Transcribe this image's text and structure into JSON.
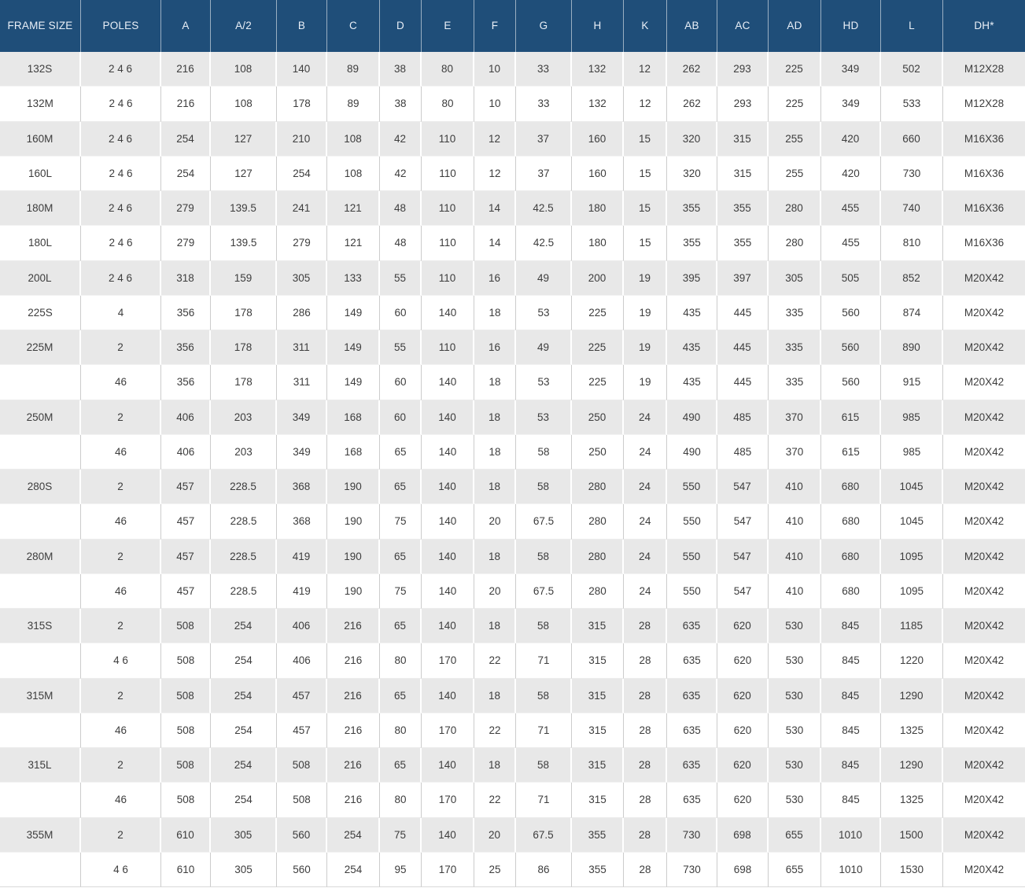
{
  "colors": {
    "header_bg": "#1F4E79",
    "header_text": "#E9EFF7",
    "row_alt_bg": "#E8E8E8",
    "row_bg": "#FFFFFF",
    "cell_text": "#3D3D3D",
    "grid_on_gray": "#FFFFFF",
    "grid_on_white": "#CCCCCC"
  },
  "chart_data": {
    "type": "table",
    "title": "",
    "columns": [
      "FRAME SIZE",
      "POLES",
      "A",
      "A/2",
      "B",
      "C",
      "D",
      "E",
      "F",
      "G",
      "H",
      "K",
      "AB",
      "AC",
      "AD",
      "HD",
      "L",
      "DH*"
    ],
    "rows": [
      [
        "132S",
        "2 4 6",
        "216",
        "108",
        "140",
        "89",
        "38",
        "80",
        "10",
        "33",
        "132",
        "12",
        "262",
        "293",
        "225",
        "349",
        "502",
        "M12X28"
      ],
      [
        "132M",
        "2 4 6",
        "216",
        "108",
        "178",
        "89",
        "38",
        "80",
        "10",
        "33",
        "132",
        "12",
        "262",
        "293",
        "225",
        "349",
        "533",
        "M12X28"
      ],
      [
        "160M",
        "2 4 6",
        "254",
        "127",
        "210",
        "108",
        "42",
        "110",
        "12",
        "37",
        "160",
        "15",
        "320",
        "315",
        "255",
        "420",
        "660",
        "M16X36"
      ],
      [
        "160L",
        "2 4 6",
        "254",
        "127",
        "254",
        "108",
        "42",
        "110",
        "12",
        "37",
        "160",
        "15",
        "320",
        "315",
        "255",
        "420",
        "730",
        "M16X36"
      ],
      [
        "180M",
        "2 4 6",
        "279",
        "139.5",
        "241",
        "121",
        "48",
        "110",
        "14",
        "42.5",
        "180",
        "15",
        "355",
        "355",
        "280",
        "455",
        "740",
        "M16X36"
      ],
      [
        "180L",
        "2 4 6",
        "279",
        "139.5",
        "279",
        "121",
        "48",
        "110",
        "14",
        "42.5",
        "180",
        "15",
        "355",
        "355",
        "280",
        "455",
        "810",
        "M16X36"
      ],
      [
        "200L",
        "2 4 6",
        "318",
        "159",
        "305",
        "133",
        "55",
        "110",
        "16",
        "49",
        "200",
        "19",
        "395",
        "397",
        "305",
        "505",
        "852",
        "M20X42"
      ],
      [
        "225S",
        "4",
        "356",
        "178",
        "286",
        "149",
        "60",
        "140",
        "18",
        "53",
        "225",
        "19",
        "435",
        "445",
        "335",
        "560",
        "874",
        "M20X42"
      ],
      [
        "225M",
        "2",
        "356",
        "178",
        "311",
        "149",
        "55",
        "110",
        "16",
        "49",
        "225",
        "19",
        "435",
        "445",
        "335",
        "560",
        "890",
        "M20X42"
      ],
      [
        "",
        "46",
        "356",
        "178",
        "311",
        "149",
        "60",
        "140",
        "18",
        "53",
        "225",
        "19",
        "435",
        "445",
        "335",
        "560",
        "915",
        "M20X42"
      ],
      [
        "250M",
        "2",
        "406",
        "203",
        "349",
        "168",
        "60",
        "140",
        "18",
        "53",
        "250",
        "24",
        "490",
        "485",
        "370",
        "615",
        "985",
        "M20X42"
      ],
      [
        "",
        "46",
        "406",
        "203",
        "349",
        "168",
        "65",
        "140",
        "18",
        "58",
        "250",
        "24",
        "490",
        "485",
        "370",
        "615",
        "985",
        "M20X42"
      ],
      [
        "280S",
        "2",
        "457",
        "228.5",
        "368",
        "190",
        "65",
        "140",
        "18",
        "58",
        "280",
        "24",
        "550",
        "547",
        "410",
        "680",
        "1045",
        "M20X42"
      ],
      [
        "",
        "46",
        "457",
        "228.5",
        "368",
        "190",
        "75",
        "140",
        "20",
        "67.5",
        "280",
        "24",
        "550",
        "547",
        "410",
        "680",
        "1045",
        "M20X42"
      ],
      [
        "280M",
        "2",
        "457",
        "228.5",
        "419",
        "190",
        "65",
        "140",
        "18",
        "58",
        "280",
        "24",
        "550",
        "547",
        "410",
        "680",
        "1095",
        "M20X42"
      ],
      [
        "",
        "46",
        "457",
        "228.5",
        "419",
        "190",
        "75",
        "140",
        "20",
        "67.5",
        "280",
        "24",
        "550",
        "547",
        "410",
        "680",
        "1095",
        "M20X42"
      ],
      [
        "315S",
        "2",
        "508",
        "254",
        "406",
        "216",
        "65",
        "140",
        "18",
        "58",
        "315",
        "28",
        "635",
        "620",
        "530",
        "845",
        "1185",
        "M20X42"
      ],
      [
        "",
        "4 6",
        "508",
        "254",
        "406",
        "216",
        "80",
        "170",
        "22",
        "71",
        "315",
        "28",
        "635",
        "620",
        "530",
        "845",
        "1220",
        "M20X42"
      ],
      [
        "315M",
        "2",
        "508",
        "254",
        "457",
        "216",
        "65",
        "140",
        "18",
        "58",
        "315",
        "28",
        "635",
        "620",
        "530",
        "845",
        "1290",
        "M20X42"
      ],
      [
        "",
        "46",
        "508",
        "254",
        "457",
        "216",
        "80",
        "170",
        "22",
        "71",
        "315",
        "28",
        "635",
        "620",
        "530",
        "845",
        "1325",
        "M20X42"
      ],
      [
        "315L",
        "2",
        "508",
        "254",
        "508",
        "216",
        "65",
        "140",
        "18",
        "58",
        "315",
        "28",
        "635",
        "620",
        "530",
        "845",
        "1290",
        "M20X42"
      ],
      [
        "",
        "46",
        "508",
        "254",
        "508",
        "216",
        "80",
        "170",
        "22",
        "71",
        "315",
        "28",
        "635",
        "620",
        "530",
        "845",
        "1325",
        "M20X42"
      ],
      [
        "355M",
        "2",
        "610",
        "305",
        "560",
        "254",
        "75",
        "140",
        "20",
        "67.5",
        "355",
        "28",
        "730",
        "698",
        "655",
        "1010",
        "1500",
        "M20X42"
      ],
      [
        "",
        "4 6",
        "610",
        "305",
        "560",
        "254",
        "95",
        "170",
        "25",
        "86",
        "355",
        "28",
        "730",
        "698",
        "655",
        "1010",
        "1530",
        "M20X42"
      ]
    ]
  }
}
